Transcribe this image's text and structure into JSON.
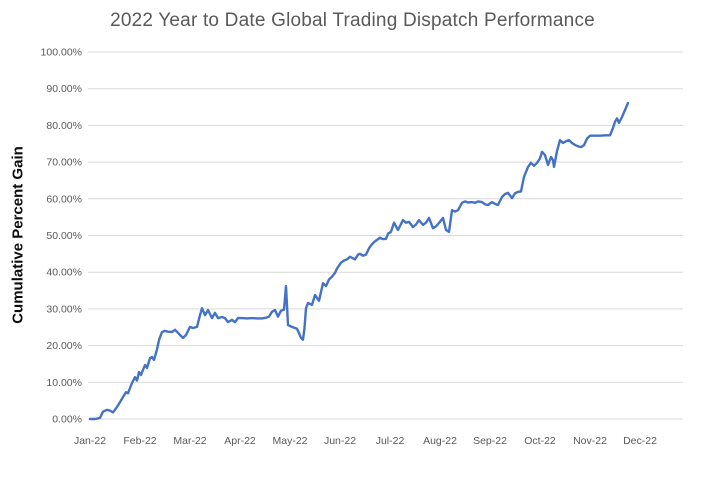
{
  "chart_data": {
    "type": "line",
    "title": "2022 Year to Date Global Trading Dispatch Performance",
    "xlabel": "",
    "ylabel": "Cumulative Percent Gain",
    "x_categories": [
      "Jan-22",
      "Feb-22",
      "Mar-22",
      "Apr-22",
      "May-22",
      "Jun-22",
      "Jul-22",
      "Aug-22",
      "Sep-22",
      "Oct-22",
      "Nov-22",
      "Dec-22"
    ],
    "y_tick_labels": [
      "0.00%",
      "10.00%",
      "20.00%",
      "30.00%",
      "40.00%",
      "50.00%",
      "60.00%",
      "70.00%",
      "80.00%",
      "90.00%",
      "100.00%"
    ],
    "ylim": [
      0,
      100
    ],
    "y_tick_step": 10,
    "grid": "horizontal",
    "legend": "none",
    "line_color": "#4472C4",
    "grid_color": "#D9D9D9",
    "tick_label_color": "#595959",
    "title_color": "#595959",
    "x_unit": "months since 1 Jan 2022 (0 = Jan-22 tick, 11 = Dec-22 tick)",
    "y_unit": "cumulative percent gain",
    "points": [
      [
        0,
        0
      ],
      [
        0.1,
        0
      ],
      [
        0.2,
        0.3
      ],
      [
        0.26,
        2
      ],
      [
        0.34,
        2.5
      ],
      [
        0.4,
        2.3
      ],
      [
        0.46,
        1.8
      ],
      [
        0.54,
        3.3
      ],
      [
        0.6,
        4.6
      ],
      [
        0.66,
        6
      ],
      [
        0.72,
        7.3
      ],
      [
        0.76,
        7
      ],
      [
        0.84,
        9.8
      ],
      [
        0.9,
        11.4
      ],
      [
        0.94,
        10.5
      ],
      [
        0.98,
        12.8
      ],
      [
        1.02,
        12
      ],
      [
        1.06,
        13.4
      ],
      [
        1.1,
        14.7
      ],
      [
        1.14,
        13.9
      ],
      [
        1.2,
        16.6
      ],
      [
        1.24,
        16.9
      ],
      [
        1.28,
        16.1
      ],
      [
        1.34,
        19
      ],
      [
        1.38,
        21.5
      ],
      [
        1.44,
        23.7
      ],
      [
        1.5,
        24
      ],
      [
        1.56,
        23.8
      ],
      [
        1.64,
        23.7
      ],
      [
        1.7,
        24.3
      ],
      [
        1.76,
        23.5
      ],
      [
        1.8,
        22.9
      ],
      [
        1.86,
        22.1
      ],
      [
        1.92,
        22.9
      ],
      [
        2,
        25.1
      ],
      [
        2.06,
        24.8
      ],
      [
        2.14,
        25.1
      ],
      [
        2.2,
        28.3
      ],
      [
        2.24,
        30.2
      ],
      [
        2.3,
        28.3
      ],
      [
        2.36,
        29.7
      ],
      [
        2.44,
        27.5
      ],
      [
        2.5,
        28.9
      ],
      [
        2.56,
        27.5
      ],
      [
        2.64,
        27.8
      ],
      [
        2.7,
        27.5
      ],
      [
        2.76,
        26.4
      ],
      [
        2.84,
        27
      ],
      [
        2.9,
        26.4
      ],
      [
        2.96,
        27.5
      ],
      [
        3.04,
        27.5
      ],
      [
        3.14,
        27.4
      ],
      [
        3.24,
        27.5
      ],
      [
        3.34,
        27.4
      ],
      [
        3.44,
        27.4
      ],
      [
        3.52,
        27.6
      ],
      [
        3.58,
        27.9
      ],
      [
        3.64,
        29.2
      ],
      [
        3.7,
        29.7
      ],
      [
        3.76,
        27.9
      ],
      [
        3.82,
        29.5
      ],
      [
        3.88,
        29.8
      ],
      [
        3.92,
        36.2
      ],
      [
        3.96,
        25.6
      ],
      [
        4.02,
        25.2
      ],
      [
        4.08,
        24.9
      ],
      [
        4.14,
        24.6
      ],
      [
        4.18,
        23.4
      ],
      [
        4.22,
        22.1
      ],
      [
        4.26,
        21.6
      ],
      [
        4.29,
        24.8
      ],
      [
        4.32,
        30.2
      ],
      [
        4.36,
        31.6
      ],
      [
        4.44,
        31.1
      ],
      [
        4.5,
        33.8
      ],
      [
        4.54,
        33
      ],
      [
        4.58,
        32.2
      ],
      [
        4.62,
        34.6
      ],
      [
        4.66,
        37
      ],
      [
        4.72,
        36.2
      ],
      [
        4.78,
        38
      ],
      [
        4.84,
        38.8
      ],
      [
        4.9,
        39.8
      ],
      [
        4.94,
        41
      ],
      [
        5.02,
        42.6
      ],
      [
        5.08,
        43.2
      ],
      [
        5.14,
        43.5
      ],
      [
        5.2,
        44.2
      ],
      [
        5.26,
        43.8
      ],
      [
        5.3,
        43.5
      ],
      [
        5.36,
        44.8
      ],
      [
        5.4,
        45
      ],
      [
        5.46,
        44.5
      ],
      [
        5.52,
        44.8
      ],
      [
        5.58,
        46.5
      ],
      [
        5.62,
        47.3
      ],
      [
        5.68,
        48.2
      ],
      [
        5.74,
        48.8
      ],
      [
        5.8,
        49.4
      ],
      [
        5.86,
        49
      ],
      [
        5.92,
        49.1
      ],
      [
        5.96,
        50.5
      ],
      [
        6.02,
        51
      ],
      [
        6.08,
        53.5
      ],
      [
        6.16,
        51.5
      ],
      [
        6.26,
        54.2
      ],
      [
        6.32,
        53.5
      ],
      [
        6.38,
        53.7
      ],
      [
        6.46,
        52.3
      ],
      [
        6.52,
        53
      ],
      [
        6.58,
        54.2
      ],
      [
        6.66,
        52.9
      ],
      [
        6.72,
        53.5
      ],
      [
        6.78,
        54.8
      ],
      [
        6.86,
        52
      ],
      [
        6.92,
        52.5
      ],
      [
        6.98,
        53.4
      ],
      [
        7.06,
        54.8
      ],
      [
        7.12,
        51.5
      ],
      [
        7.18,
        51
      ],
      [
        7.24,
        56.9
      ],
      [
        7.3,
        56.5
      ],
      [
        7.36,
        56.9
      ],
      [
        7.44,
        58.9
      ],
      [
        7.5,
        59.3
      ],
      [
        7.56,
        59
      ],
      [
        7.64,
        59.1
      ],
      [
        7.7,
        58.9
      ],
      [
        7.76,
        59.3
      ],
      [
        7.84,
        59.1
      ],
      [
        7.9,
        58.5
      ],
      [
        7.96,
        58.3
      ],
      [
        8.04,
        59.1
      ],
      [
        8.1,
        58.6
      ],
      [
        8.16,
        58.3
      ],
      [
        8.24,
        60.5
      ],
      [
        8.3,
        61.3
      ],
      [
        8.36,
        61.6
      ],
      [
        8.44,
        60.2
      ],
      [
        8.5,
        61.5
      ],
      [
        8.56,
        61.9
      ],
      [
        8.62,
        62
      ],
      [
        8.68,
        66
      ],
      [
        8.76,
        68.7
      ],
      [
        8.82,
        69.8
      ],
      [
        8.88,
        69
      ],
      [
        8.94,
        69.8
      ],
      [
        9,
        71
      ],
      [
        9.04,
        72.8
      ],
      [
        9.1,
        71.9
      ],
      [
        9.16,
        69.2
      ],
      [
        9.22,
        71.4
      ],
      [
        9.26,
        70.5
      ],
      [
        9.28,
        68.7
      ],
      [
        9.34,
        73
      ],
      [
        9.4,
        76
      ],
      [
        9.46,
        75.2
      ],
      [
        9.52,
        75.7
      ],
      [
        9.58,
        76
      ],
      [
        9.64,
        75.2
      ],
      [
        9.7,
        74.7
      ],
      [
        9.76,
        74.3
      ],
      [
        9.82,
        74.1
      ],
      [
        9.88,
        74.6
      ],
      [
        9.94,
        76.4
      ],
      [
        10,
        77.2
      ],
      [
        10.1,
        77.2
      ],
      [
        10.2,
        77.2
      ],
      [
        10.3,
        77.3
      ],
      [
        10.4,
        77.3
      ],
      [
        10.46,
        79.3
      ],
      [
        10.5,
        81
      ],
      [
        10.54,
        81.9
      ],
      [
        10.58,
        80.7
      ],
      [
        10.64,
        82.3
      ],
      [
        10.7,
        84.2
      ],
      [
        10.76,
        86.1
      ]
    ]
  }
}
